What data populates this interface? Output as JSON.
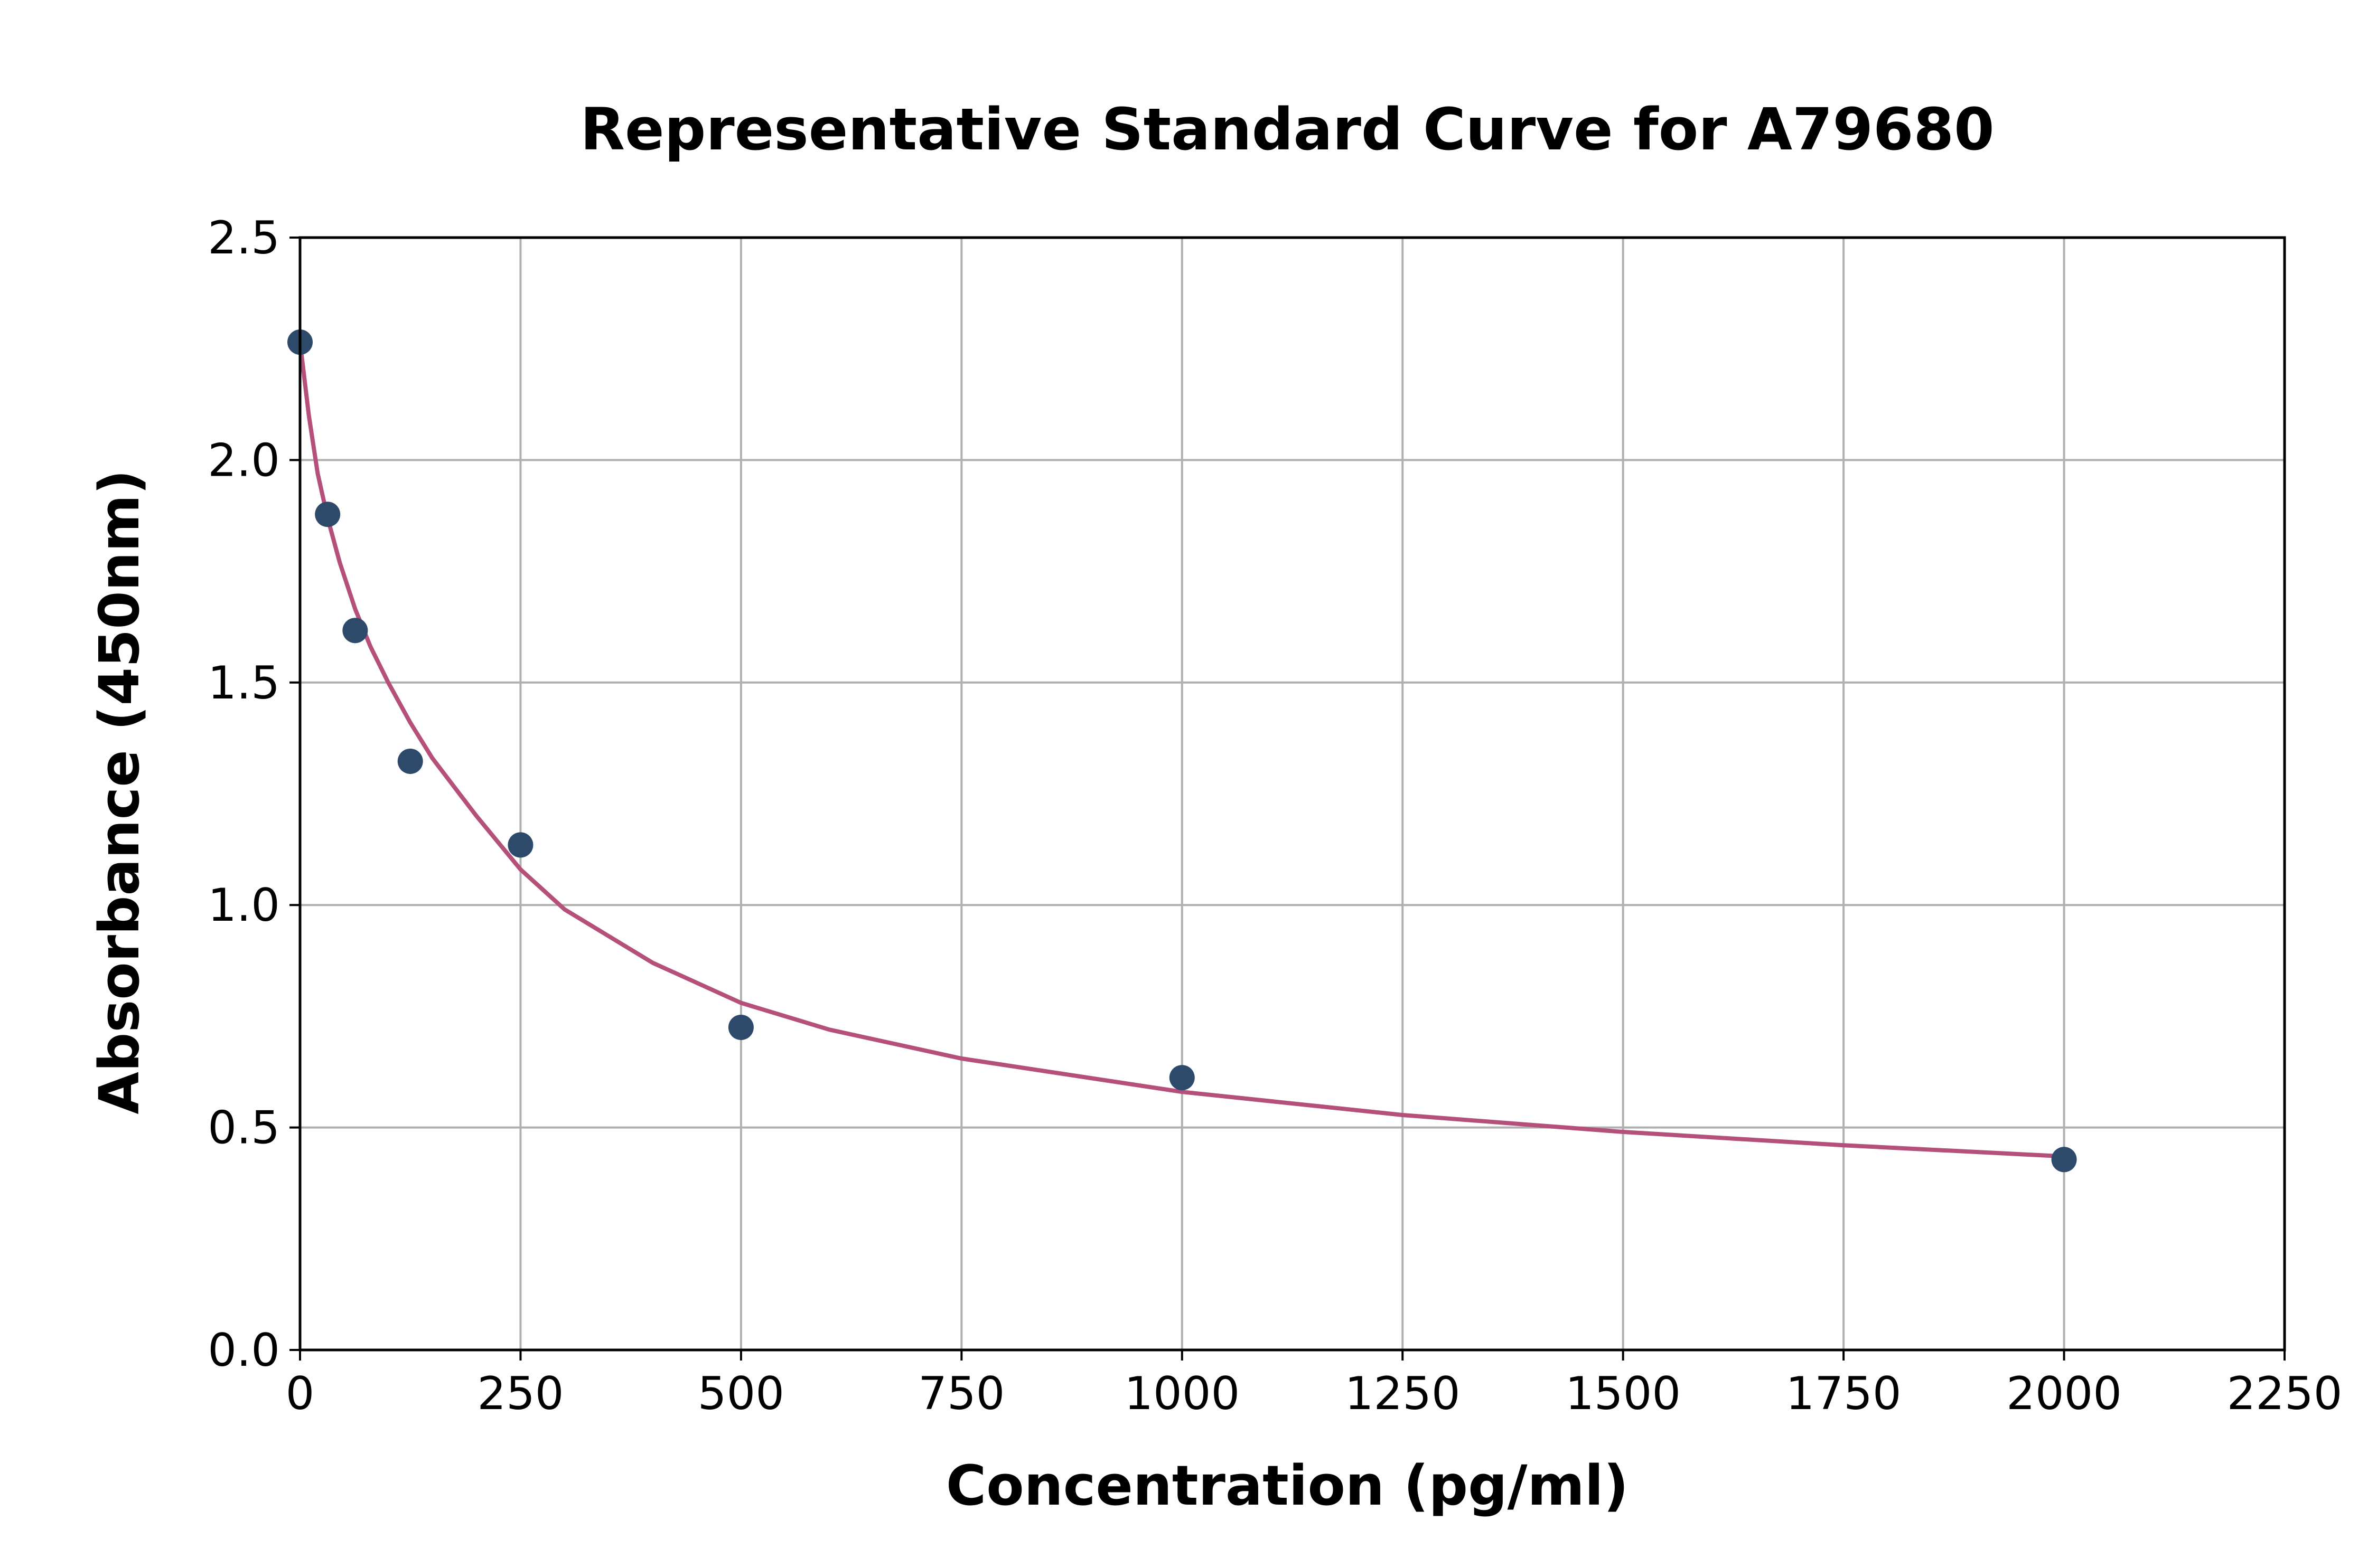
{
  "chart_data": {
    "type": "scatter",
    "title": "Representative Standard Curve for A79680",
    "xlabel": "Concentration (pg/ml)",
    "ylabel": "Absorbance (450nm)",
    "xlim": [
      0,
      2250
    ],
    "ylim": [
      0,
      2.5
    ],
    "xticks": [
      "0",
      "250",
      "500",
      "750",
      "1000",
      "1250",
      "1500",
      "1750",
      "2000",
      "2250"
    ],
    "yticks": [
      "0.0",
      "0.5",
      "1.0",
      "1.5",
      "2.0",
      "2.5"
    ],
    "grid": true,
    "series": [
      {
        "kind": "points",
        "color": "#2d4a6b",
        "x": [
          0,
          31.25,
          62.5,
          125,
          250,
          500,
          1000,
          2000
        ],
        "y": [
          2.265,
          1.878,
          1.617,
          1.323,
          1.135,
          0.725,
          0.612,
          0.428
        ]
      },
      {
        "kind": "fitted-curve",
        "color": "#b5507a",
        "x": [
          0,
          10,
          20,
          31.25,
          45,
          62.5,
          80,
          100,
          125,
          150,
          175,
          200,
          250,
          300,
          400,
          500,
          600,
          750,
          1000,
          1250,
          1500,
          1750,
          2000
        ],
        "y": [
          2.265,
          2.1,
          1.97,
          1.87,
          1.77,
          1.665,
          1.58,
          1.5,
          1.41,
          1.33,
          1.265,
          1.2,
          1.08,
          0.99,
          0.87,
          0.78,
          0.72,
          0.655,
          0.58,
          0.528,
          0.49,
          0.46,
          0.435
        ]
      }
    ]
  }
}
